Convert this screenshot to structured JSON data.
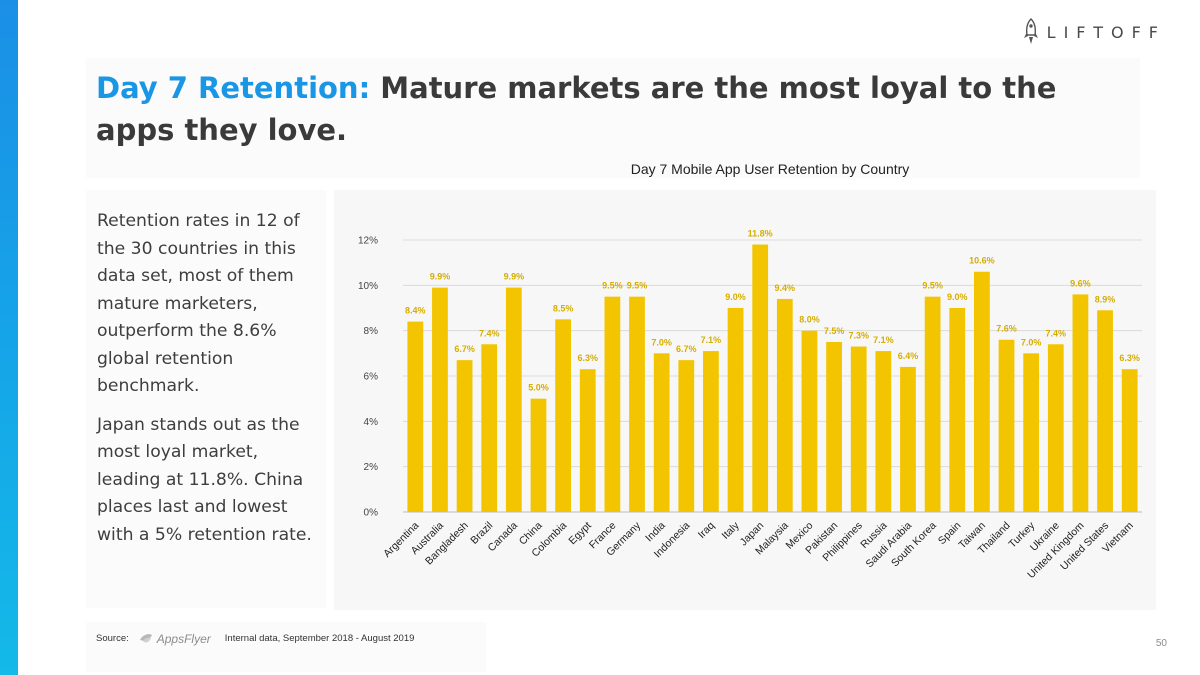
{
  "brand": {
    "name": "LIFTOFF",
    "accent_color": "#1996e5",
    "bar_color": "#f2c500",
    "icon": "rocket-icon"
  },
  "slide": {
    "title_prefix": "Day 7 Retention:",
    "title_rest": " Mature markets are the most loyal to the apps they love.",
    "body": [
      "Retention rates in 12 of the 30 countries in this data set, most of them mature marketers, outperform the 8.6% global retention benchmark.",
      "Japan stands out as the most loyal market, leading at 11.8%. China places last and lowest with a 5% retention rate."
    ],
    "page_number": "50"
  },
  "source": {
    "label": "Source:",
    "provider": "AppsFlyer",
    "provider_icon": "appsflyer-icon",
    "note": "Internal data, September 2018 - August 2019"
  },
  "chart_data": {
    "type": "bar",
    "title": "Day 7 Mobile App User Retention by Country",
    "xlabel": "",
    "ylabel": "",
    "ylim": [
      0,
      12
    ],
    "yticks": [
      {
        "value": 0,
        "label": "0%"
      },
      {
        "value": 2,
        "label": "2%"
      },
      {
        "value": 4,
        "label": "4%"
      },
      {
        "value": 6,
        "label": "6%"
      },
      {
        "value": 8,
        "label": "8%"
      },
      {
        "value": 10,
        "label": "10%"
      },
      {
        "value": 12,
        "label": "12%"
      }
    ],
    "grid": true,
    "legend": "none",
    "categories": [
      "Argentina",
      "Australia",
      "Bangladesh",
      "Brazil",
      "Canada",
      "China",
      "Colombia",
      "Egypt",
      "France",
      "Germany",
      "India",
      "Indonesia",
      "Iraq",
      "Italy",
      "Japan",
      "Malaysia",
      "Mexico",
      "Pakistan",
      "Philippines",
      "Russia",
      "Saudi Arabia",
      "South Korea",
      "Spain",
      "Taiwan",
      "Thailand",
      "Turkey",
      "Ukraine",
      "United Kingdom",
      "United States",
      "Vietnam"
    ],
    "values": [
      8.4,
      9.9,
      6.7,
      7.4,
      9.9,
      5.0,
      8.5,
      6.3,
      9.5,
      9.5,
      7.0,
      6.7,
      7.1,
      9.0,
      11.8,
      9.4,
      8.0,
      7.5,
      7.3,
      7.1,
      6.4,
      9.5,
      9.0,
      10.6,
      7.6,
      7.0,
      7.4,
      9.6,
      8.9,
      6.3
    ],
    "data_labels": [
      "8.4%",
      "9.9%",
      "6.7%",
      "7.4%",
      "9.9%",
      "5.0%",
      "8.5%",
      "6.3%",
      "9.5%",
      "9.5%",
      "7.0%",
      "6.7%",
      "7.1%",
      "9.0%",
      "11.8%",
      "9.4%",
      "8.0%",
      "7.5%",
      "7.3%",
      "7.1%",
      "6.4%",
      "9.5%",
      "9.0%",
      "10.6%",
      "7.6%",
      "7.0%",
      "7.4%",
      "9.6%",
      "8.9%",
      "6.3%"
    ]
  }
}
